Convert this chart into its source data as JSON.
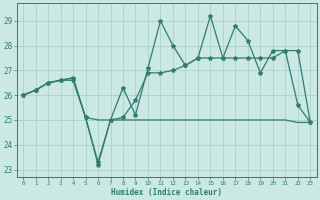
{
  "xlabel": "Humidex (Indice chaleur)",
  "x": [
    0,
    1,
    2,
    3,
    4,
    5,
    6,
    7,
    8,
    9,
    10,
    11,
    12,
    13,
    14,
    15,
    16,
    17,
    18,
    19,
    20,
    21,
    22,
    23
  ],
  "line1": [
    26.0,
    26.2,
    26.5,
    26.6,
    26.6,
    25.1,
    23.3,
    25.0,
    26.3,
    25.2,
    27.1,
    29.0,
    28.0,
    27.2,
    27.5,
    29.2,
    27.5,
    28.8,
    28.2,
    26.9,
    27.8,
    27.8,
    25.6,
    24.9
  ],
  "line2": [
    26.0,
    26.2,
    26.5,
    26.6,
    26.7,
    25.1,
    23.2,
    25.0,
    25.1,
    25.8,
    26.9,
    26.9,
    27.0,
    27.2,
    27.5,
    27.5,
    27.5,
    27.5,
    27.5,
    27.5,
    27.5,
    27.8,
    27.8,
    24.9
  ],
  "line3": [
    26.0,
    26.2,
    26.5,
    26.6,
    26.7,
    25.1,
    25.0,
    25.0,
    25.0,
    25.0,
    25.0,
    25.0,
    25.0,
    25.0,
    25.0,
    25.0,
    25.0,
    25.0,
    25.0,
    25.0,
    25.0,
    25.0,
    24.9,
    24.9
  ],
  "color": "#2e7d6e",
  "bg_color": "#cce8e3",
  "grid_color": "#aad0cb",
  "yticks": [
    23,
    24,
    25,
    26,
    27,
    28,
    29
  ],
  "xticks": [
    0,
    1,
    2,
    3,
    4,
    5,
    6,
    7,
    8,
    9,
    10,
    11,
    12,
    13,
    14,
    15,
    16,
    17,
    18,
    19,
    20,
    21,
    22,
    23
  ]
}
